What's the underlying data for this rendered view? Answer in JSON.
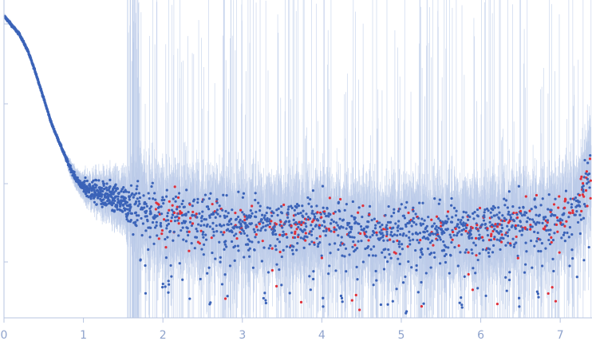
{
  "chart_data": {
    "type": "scatter",
    "title": "",
    "xlabel": "",
    "ylabel": "",
    "xlim": [
      0,
      7.4
    ],
    "ylim": [
      0,
      1
    ],
    "x_ticks": [
      "0",
      "1",
      "2",
      "3",
      "4",
      "5",
      "6",
      "7"
    ],
    "y_tick_marks": 4,
    "y_tick_labels_visible": false,
    "grid": false,
    "legend": "none",
    "colors": {
      "points": "#3b63b8",
      "outlier_points": "#e0303a",
      "error_bars": "#b9c9e8",
      "axis": "#b7c4e0",
      "tick_label": "#8fa3cc"
    },
    "series": [
      {
        "values_description": "none",
        "x": [
          0.0,
          0.1,
          0.2,
          0.3,
          0.4,
          0.5,
          0.6,
          0.7,
          0.8,
          0.9,
          1.0,
          1.2,
          1.4,
          1.6,
          1.8,
          2.0,
          2.5,
          3.0,
          3.5,
          4.0,
          4.5,
          5.0,
          5.5,
          6.0,
          6.5,
          7.0,
          7.2,
          7.35
        ],
        "y": [
          0.95,
          0.92,
          0.89,
          0.84,
          0.77,
          0.69,
          0.61,
          0.55,
          0.49,
          0.44,
          0.41,
          0.39,
          0.37,
          0.35,
          0.34,
          0.33,
          0.31,
          0.3,
          0.29,
          0.29,
          0.28,
          0.28,
          0.28,
          0.28,
          0.29,
          0.31,
          0.36,
          0.45
        ]
      }
    ]
  }
}
